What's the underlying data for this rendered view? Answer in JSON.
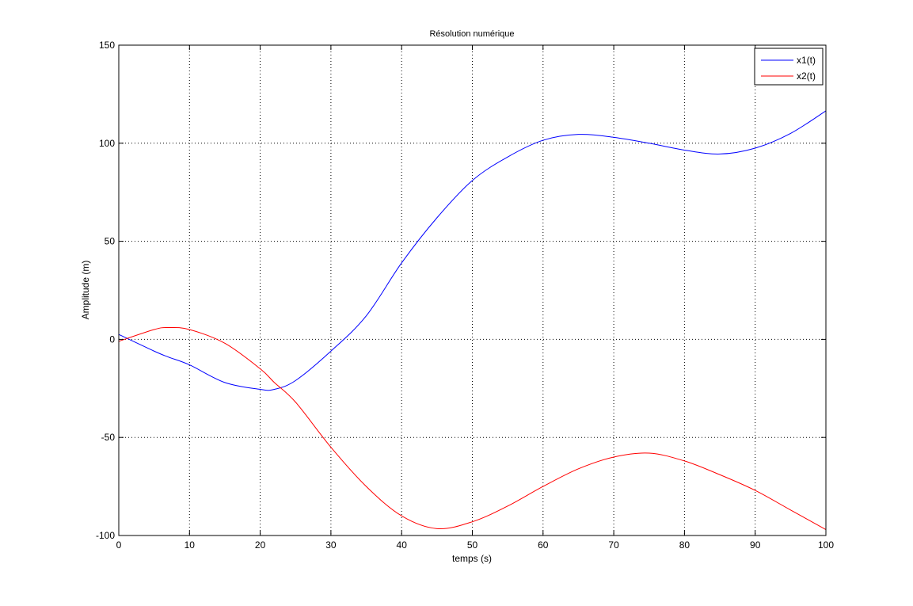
{
  "chart_data": {
    "type": "line",
    "title": "Résolution numérique",
    "xlabel": "temps (s)",
    "ylabel": "Amplitude (m)",
    "xlim": [
      0,
      100
    ],
    "ylim": [
      -100,
      150
    ],
    "xticks": [
      0,
      10,
      20,
      30,
      40,
      50,
      60,
      70,
      80,
      90,
      100
    ],
    "yticks": [
      -100,
      -50,
      0,
      50,
      100,
      150
    ],
    "grid": true,
    "legend_position": "top-right",
    "x": [
      0,
      5,
      7,
      10,
      15,
      20,
      22,
      25,
      30,
      35,
      40,
      45,
      50,
      55,
      60,
      65,
      70,
      75,
      80,
      85,
      90,
      95,
      100
    ],
    "series": [
      {
        "name": "x1(t)",
        "color": "#0000ff",
        "values": [
          2.5,
          -6,
          -9,
          -13,
          -22,
          -25.5,
          -25.5,
          -21,
          -6,
          12,
          39,
          62,
          81,
          93,
          101.5,
          104.5,
          103,
          100,
          96.5,
          94.5,
          97.5,
          105,
          116.5
        ]
      },
      {
        "name": "x2(t)",
        "color": "#ff0000",
        "values": [
          -1,
          5,
          6,
          5,
          -2,
          -15,
          -22,
          -32,
          -55,
          -75,
          -90,
          -96.5,
          -93,
          -85,
          -75,
          -66,
          -60,
          -58,
          -62,
          -69,
          -77,
          -87,
          -97
        ]
      }
    ]
  }
}
